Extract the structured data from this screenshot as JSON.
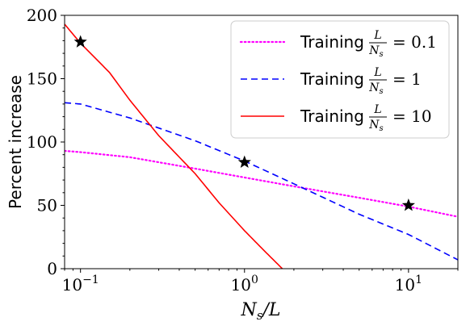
{
  "chart_data": {
    "type": "line",
    "xscale": "log",
    "xlim": [
      0.08,
      20
    ],
    "ylim": [
      0,
      200
    ],
    "xlabel": "N_s/L",
    "ylabel": "Percent increase",
    "x_ticks": [
      {
        "value": 0.1,
        "label": "10^{-1}",
        "base": "10",
        "exp": "−1"
      },
      {
        "value": 1,
        "label": "10^{0}",
        "base": "10",
        "exp": "0"
      },
      {
        "value": 10,
        "label": "10^{1}",
        "base": "10",
        "exp": "1"
      }
    ],
    "y_ticks": [
      0,
      50,
      100,
      150,
      200
    ],
    "legend": {
      "placement": "top-right"
    },
    "series": [
      {
        "name": "Training L/N_s = 0.1",
        "legend_prefix": "Training",
        "legend_ratio_num": "L",
        "legend_ratio_den": "N",
        "legend_ratio_den_sub": "s",
        "legend_value": "= 0.1",
        "color": "#ff00ff",
        "style": "dotted",
        "x": [
          0.08,
          0.1,
          0.2,
          0.5,
          1,
          2,
          5,
          10,
          20
        ],
        "y": [
          93,
          92,
          88,
          79,
          72,
          65,
          56,
          49,
          41
        ],
        "marker": {
          "x": 10,
          "y": 50
        }
      },
      {
        "name": "Training L/N_s = 1",
        "legend_prefix": "Training",
        "legend_ratio_num": "L",
        "legend_ratio_den": "N",
        "legend_ratio_den_sub": "s",
        "legend_value": "= 1",
        "color": "#0000ff",
        "style": "dashed",
        "x": [
          0.08,
          0.1,
          0.2,
          0.5,
          1,
          2,
          5,
          10,
          20
        ],
        "y": [
          131,
          130,
          119,
          101,
          85,
          67,
          43,
          27,
          7
        ],
        "marker": {
          "x": 1,
          "y": 84
        }
      },
      {
        "name": "Training L/N_s = 10",
        "legend_prefix": "Training",
        "legend_ratio_num": "L",
        "legend_ratio_den": "N",
        "legend_ratio_den_sub": "s",
        "legend_value": "= 10",
        "color": "#ff0000",
        "style": "solid",
        "x": [
          0.08,
          0.1,
          0.15,
          0.2,
          0.3,
          0.5,
          0.7,
          1,
          1.3,
          1.7
        ],
        "y": [
          193,
          178,
          155,
          133,
          105,
          75,
          52,
          30,
          15,
          0
        ],
        "marker": {
          "x": 0.1,
          "y": 179
        }
      }
    ]
  }
}
